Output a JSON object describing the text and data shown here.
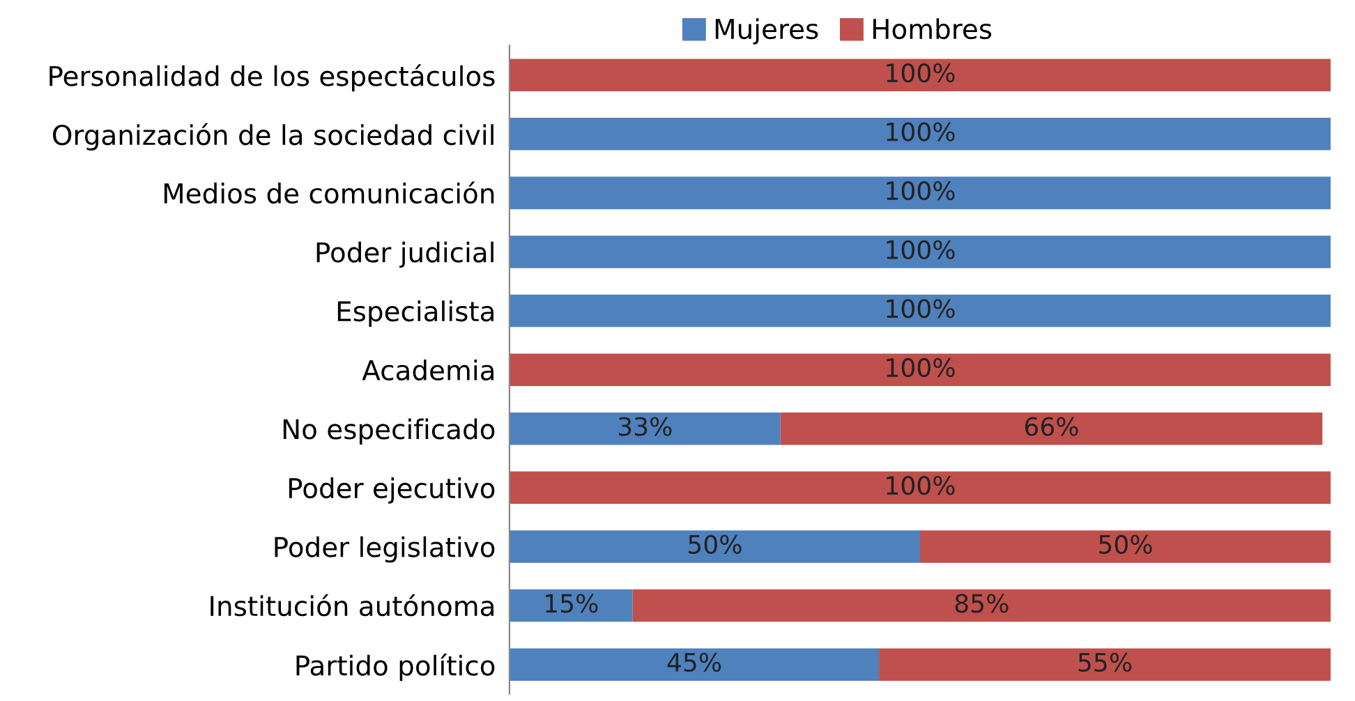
{
  "chart_data": {
    "type": "bar",
    "orientation": "horizontal",
    "stacked": true,
    "categories": [
      "Personalidad de los espectáculos",
      "Organización de la sociedad civil",
      "Medios de comunicación",
      "Poder judicial",
      "Especialista",
      "Academia",
      "No especificado",
      "Poder ejecutivo",
      "Poder legislativo",
      "Institución autónoma",
      "Partido político"
    ],
    "series": [
      {
        "name": "Mujeres",
        "color": "#4f81bd",
        "values": [
          0,
          100,
          100,
          100,
          100,
          0,
          33,
          0,
          50,
          15,
          45
        ],
        "value_labels": [
          null,
          "100%",
          "100%",
          "100%",
          "100%",
          null,
          "33%",
          null,
          "50%",
          "15%",
          "45%"
        ]
      },
      {
        "name": "Hombres",
        "color": "#c0504d",
        "values": [
          100,
          0,
          0,
          0,
          0,
          100,
          66,
          100,
          50,
          85,
          55
        ],
        "value_labels": [
          "100%",
          null,
          null,
          null,
          null,
          "100%",
          "66%",
          "100%",
          "50%",
          "85%",
          "55%"
        ]
      }
    ],
    "xlim": [
      0,
      100
    ],
    "tick_labels": "y",
    "grid": false,
    "legend": "top"
  }
}
